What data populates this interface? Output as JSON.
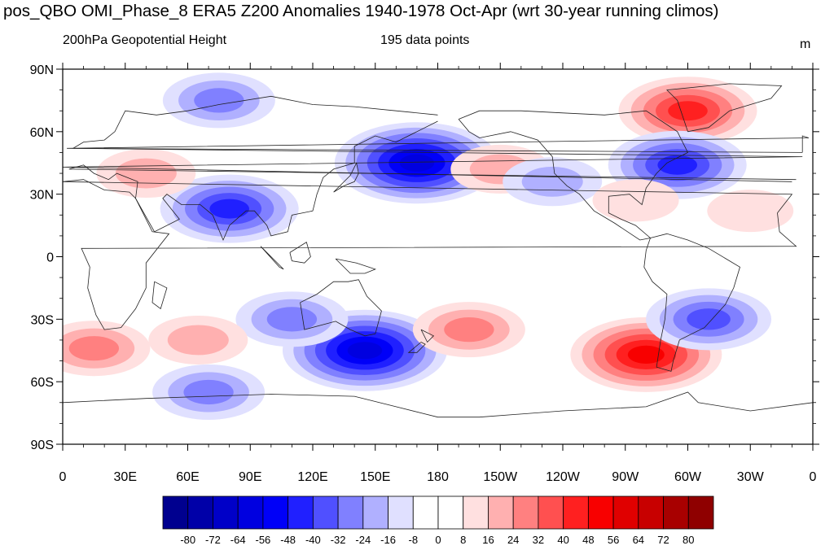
{
  "title": "pos_QBO OMI_Phase_8 ERA5 Z200 Anomalies 1940-1978 Oct-Apr (wrt 30-year running climos)",
  "left_subtitle": "200hPa Geopotential Height",
  "center_subtitle": "195 data points",
  "units": "m",
  "lat_labels": [
    "90N",
    "60N",
    "30N",
    "0",
    "30S",
    "60S",
    "90S"
  ],
  "lon_labels": [
    "0",
    "30E",
    "60E",
    "90E",
    "120E",
    "150E",
    "180",
    "150W",
    "120W",
    "90W",
    "60W",
    "30W",
    "0"
  ],
  "colorbar": {
    "labels": [
      "-80",
      "-72",
      "-64",
      "-56",
      "-48",
      "-40",
      "-32",
      "-24",
      "-16",
      "-8",
      "0",
      "8",
      "16",
      "24",
      "32",
      "40",
      "48",
      "56",
      "64",
      "72",
      "80"
    ],
    "colors": [
      "#00008f",
      "#0000a8",
      "#0000c8",
      "#0000e0",
      "#0000f8",
      "#2020ff",
      "#5050ff",
      "#8080ff",
      "#b0b0ff",
      "#e0e0ff",
      "#ffffff",
      "#ffffff",
      "#ffe0e0",
      "#ffb0b0",
      "#ff8080",
      "#ff5050",
      "#ff2020",
      "#f80000",
      "#e00000",
      "#c80000",
      "#a80000",
      "#8f0000"
    ]
  },
  "anomalies": [
    {
      "name": "n-pacific-low",
      "lon": 170,
      "lat": 45,
      "value": -56
    },
    {
      "name": "south-asia-low",
      "lon": 80,
      "lat": 23,
      "value": -40
    },
    {
      "name": "north-eurasia-low",
      "lon": 75,
      "lat": 75,
      "value": -24
    },
    {
      "name": "greenland-high",
      "lon": 300,
      "lat": 70,
      "value": 40
    },
    {
      "name": "ne-america-low",
      "lon": 295,
      "lat": 44,
      "value": -40
    },
    {
      "name": "ne-pacific-high",
      "lon": 210,
      "lat": 42,
      "value": 16
    },
    {
      "name": "w-america-low",
      "lon": 235,
      "lat": 36,
      "value": -16
    },
    {
      "name": "se-us-high",
      "lon": 275,
      "lat": 27,
      "value": 8
    },
    {
      "name": "n-atlantic-high",
      "lon": 330,
      "lat": 22,
      "value": 8
    },
    {
      "name": "med-high",
      "lon": 40,
      "lat": 40,
      "value": 16
    },
    {
      "name": "sw-pacific-low",
      "lon": 145,
      "lat": -45,
      "value": -56
    },
    {
      "name": "s-indian-low",
      "lon": 110,
      "lat": -30,
      "value": -24
    },
    {
      "name": "s-pacific-high",
      "lon": 195,
      "lat": -35,
      "value": 24
    },
    {
      "name": "se-pacific-high",
      "lon": 280,
      "lat": -47,
      "value": 48
    },
    {
      "name": "s-atlantic-low",
      "lon": 310,
      "lat": -30,
      "value": -32
    },
    {
      "name": "s-indian-high",
      "lon": 65,
      "lat": -40,
      "value": 16
    },
    {
      "name": "atlantic-high",
      "lon": 15,
      "lat": -44,
      "value": 24
    },
    {
      "name": "antarctic-low",
      "lon": 70,
      "lat": -65,
      "value": -24
    }
  ]
}
